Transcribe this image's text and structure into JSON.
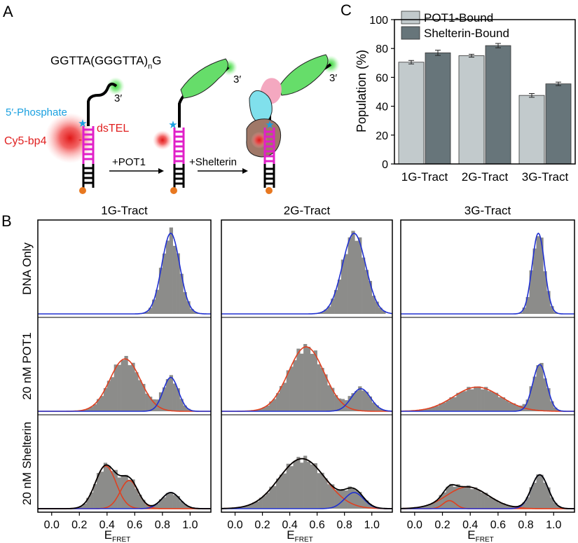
{
  "panel_labels": {
    "a": "A",
    "b": "B",
    "c": "C"
  },
  "schematic": {
    "sequence": "GGTTA(GGGTTA)",
    "sequence_subscript": "n",
    "sequence_suffix": "G",
    "three_prime": "3′",
    "five_phosphate": "5′-Phosphate",
    "dye_label": "Cy5-bp4",
    "duplex_label": "dsTEL",
    "step1": "+POT1",
    "step2": "+Shelterin",
    "colors": {
      "duplex": "#e020c8",
      "dye": "#e02020",
      "green": "#60e060",
      "phosphate": "#1aa0e0",
      "biotin": "#e87820"
    }
  },
  "chart_data": [
    {
      "id": "C",
      "type": "bar",
      "title": "",
      "ylabel": "Population (%)",
      "xlabel": "",
      "ylim": [
        0,
        100
      ],
      "yticks": [
        "0",
        "20",
        "40",
        "60",
        "80",
        "100"
      ],
      "categories": [
        "1G-Tract",
        "2G-Tract",
        "3G-Tract"
      ],
      "legend_position": "top-left",
      "series": [
        {
          "name": "POT1-Bound",
          "color": "#c2cacc",
          "values": [
            70.5,
            75.0,
            47.5
          ],
          "errors": [
            1.2,
            1.0,
            1.3
          ]
        },
        {
          "name": "Shelterin-Bound",
          "color": "#67757a",
          "values": [
            77.0,
            82.0,
            55.5
          ],
          "errors": [
            1.8,
            1.5,
            1.2
          ]
        }
      ]
    },
    {
      "id": "B",
      "type": "histogram",
      "xlabel": "E",
      "xlabel_sub": "FRET",
      "xlim": [
        -0.1,
        1.15
      ],
      "xticks": [
        "0.0",
        "0.2",
        "0.4",
        "0.6",
        "0.8",
        "1.0"
      ],
      "columns": [
        "1G-Tract",
        "2G-Tract",
        "3G-Tract"
      ],
      "rows": [
        "DNA Only",
        "20 nM POT1",
        "20 nM Shelterin"
      ],
      "colors": {
        "bars": "#8c8c8a",
        "low_fret": "#e04020",
        "high_fret": "#2030d0",
        "total": "#000000"
      },
      "fits": [
        [
          [
            {
              "mu": 0.86,
              "sigma": 0.065,
              "amp": 1.0,
              "color": "blue"
            }
          ],
          [
            {
              "mu": 0.53,
              "sigma": 0.11,
              "amp": 0.65,
              "color": "red"
            },
            {
              "mu": 0.86,
              "sigma": 0.055,
              "amp": 0.42,
              "color": "blue"
            }
          ],
          [
            {
              "mu": 0.39,
              "sigma": 0.075,
              "amp": 0.53,
              "color": "red"
            },
            {
              "mu": 0.56,
              "sigma": 0.065,
              "amp": 0.35,
              "color": "red"
            },
            {
              "mu": 0.86,
              "sigma": 0.065,
              "amp": 0.2,
              "color": "blue"
            }
          ]
        ],
        [
          [
            {
              "mu": 0.87,
              "sigma": 0.085,
              "amp": 1.0,
              "color": "blue"
            }
          ],
          [
            {
              "mu": 0.52,
              "sigma": 0.13,
              "amp": 0.8,
              "color": "red"
            },
            {
              "mu": 0.92,
              "sigma": 0.07,
              "amp": 0.28,
              "color": "blue"
            }
          ],
          [
            {
              "mu": 0.49,
              "sigma": 0.17,
              "amp": 0.62,
              "color": "red"
            },
            {
              "mu": 0.87,
              "sigma": 0.07,
              "amp": 0.2,
              "color": "blue"
            }
          ]
        ],
        [
          [
            {
              "mu": 0.89,
              "sigma": 0.045,
              "amp": 1.0,
              "color": "blue"
            }
          ],
          [
            {
              "mu": 0.45,
              "sigma": 0.17,
              "amp": 0.3,
              "color": "red"
            },
            {
              "mu": 0.9,
              "sigma": 0.05,
              "amp": 0.58,
              "color": "blue"
            }
          ],
          [
            {
              "mu": 0.25,
              "sigma": 0.045,
              "amp": 0.1,
              "color": "red"
            },
            {
              "mu": 0.38,
              "sigma": 0.15,
              "amp": 0.27,
              "color": "red"
            },
            {
              "mu": 0.9,
              "sigma": 0.06,
              "amp": 0.42,
              "color": "blue"
            }
          ]
        ]
      ]
    }
  ]
}
